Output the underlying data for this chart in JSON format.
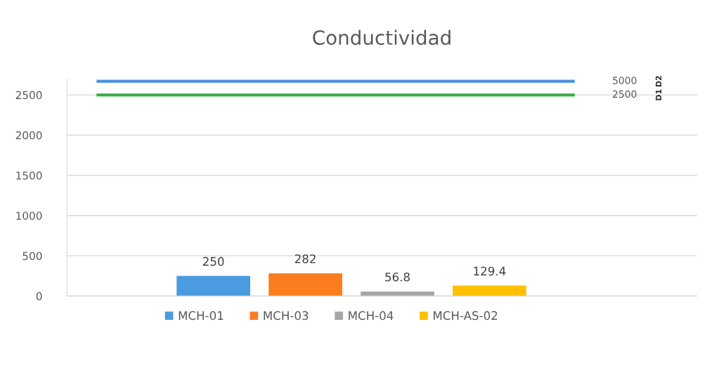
{
  "chart_data": {
    "type": "bar",
    "title": "Conductividad",
    "categories": [
      null
    ],
    "series": [
      {
        "name": "MCH-01",
        "color": "#4a9be0",
        "values": [
          250
        ]
      },
      {
        "name": "MCH-03",
        "color": "#fb7d1e",
        "values": [
          282
        ]
      },
      {
        "name": "MCH-04",
        "color": "#a5a5a5",
        "values": [
          56.8
        ]
      },
      {
        "name": "MCH-AS-02",
        "color": "#ffc000",
        "values": [
          129.4
        ]
      }
    ],
    "data_labels": true,
    "ylim": [
      0,
      2700
    ],
    "yticks": [
      0,
      500,
      1000,
      1500,
      2000,
      2500
    ],
    "grid": "y",
    "legend": "bottom",
    "ref_lines": [
      {
        "axis": "y",
        "value": 2670,
        "color": "#4a90e2"
      },
      {
        "axis": "y",
        "value": 2500,
        "color": "#3cae4a"
      }
    ],
    "annotations": [
      "5000",
      "2500",
      "D2",
      "D1"
    ]
  }
}
